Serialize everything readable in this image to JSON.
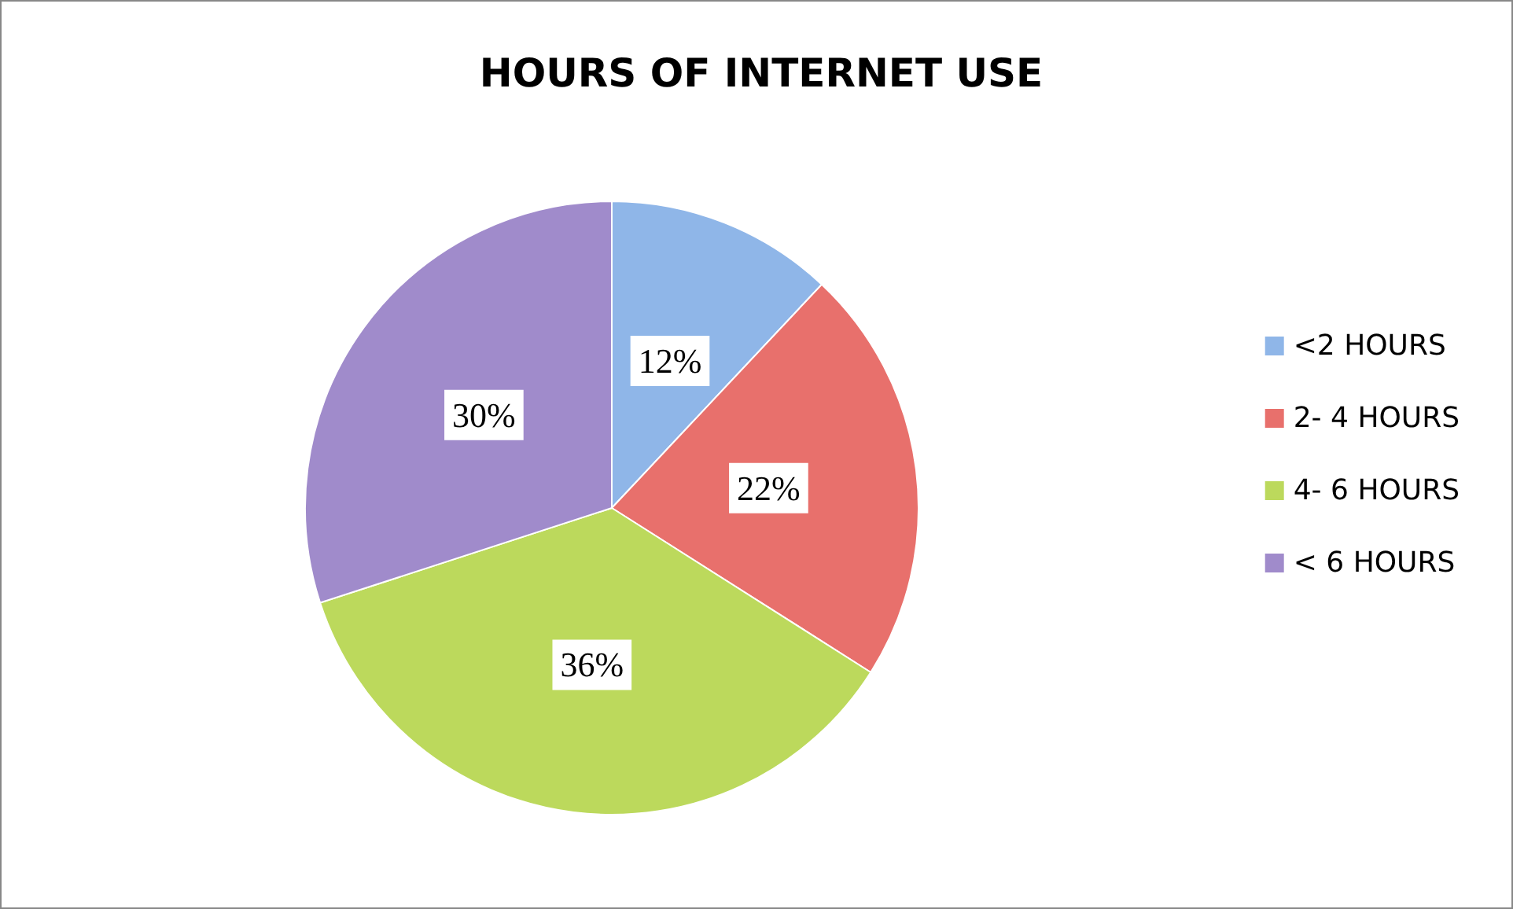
{
  "chart_data": {
    "type": "pie",
    "title": "HOURS OF INTERNET USE",
    "categories": [
      "<2 HOURS",
      "2- 4 HOURS",
      "4- 6 HOURS",
      "< 6 HOURS"
    ],
    "values": [
      12,
      22,
      36,
      30
    ],
    "colors": [
      "#8fb6e8",
      "#e8706c",
      "#bcd95c",
      "#a08bcb"
    ],
    "value_labels": [
      "12%",
      "22%",
      "36%",
      "30%"
    ],
    "legend": "right"
  }
}
